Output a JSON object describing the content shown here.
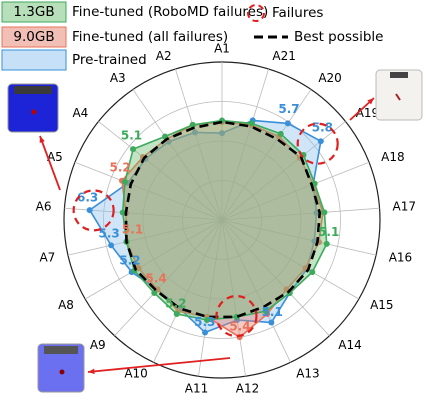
{
  "chart_data": {
    "type": "radar",
    "categories": [
      "A1",
      "A2",
      "A3",
      "A4",
      "A5",
      "A6",
      "A7",
      "A8",
      "A9",
      "A10",
      "A11",
      "A12",
      "A13",
      "A14",
      "A15",
      "A16",
      "A17",
      "A18",
      "A19",
      "A20",
      "A21"
    ],
    "rlim": [
      0,
      1
    ],
    "rticks": [
      0.25,
      0.5,
      0.75,
      1
    ],
    "grid": true,
    "series": [
      {
        "name": "Pre-trained",
        "color": "#3a8fd9",
        "fill": "#8ec2ef",
        "style": "solid",
        "values": [
          0.55,
          0.58,
          0.6,
          0.62,
          0.64,
          0.84,
          0.72,
          0.66,
          0.6,
          0.62,
          0.72,
          0.64,
          0.72,
          0.63,
          0.62,
          0.6,
          0.6,
          0.62,
          0.8,
          0.74,
          0.66
        ]
      },
      {
        "name": "Fine-tuned (all failures)",
        "badge": "9.0GB",
        "color": "#e8735a",
        "fill": "#e58070",
        "style": "solid",
        "values": [
          0.62,
          0.63,
          0.62,
          0.64,
          0.68,
          0.61,
          0.62,
          0.61,
          0.6,
          0.64,
          0.62,
          0.75,
          0.66,
          0.6,
          0.61,
          0.63,
          0.64,
          0.62,
          0.63,
          0.64,
          0.63
        ]
      },
      {
        "name": "Fine-tuned (RoboMD failures)",
        "badge": "1.3GB",
        "color": "#3daa5c",
        "fill": "#6fbf73",
        "style": "solid",
        "values": [
          0.63,
          0.63,
          0.64,
          0.72,
          0.66,
          0.63,
          0.62,
          0.64,
          0.63,
          0.66,
          0.64,
          0.62,
          0.64,
          0.63,
          0.66,
          0.68,
          0.65,
          0.63,
          0.66,
          0.66,
          0.64
        ]
      },
      {
        "name": "Best possible",
        "color": "#000000",
        "style": "dashed",
        "values": [
          0.62,
          0.61,
          0.62,
          0.63,
          0.62,
          0.61,
          0.62,
          0.63,
          0.61,
          0.62,
          0.62,
          0.62,
          0.61,
          0.62,
          0.63,
          0.62,
          0.62,
          0.61,
          0.64,
          0.62,
          0.62
        ]
      }
    ],
    "annotations": [
      {
        "text": "5.1",
        "category": 3,
        "series": 2
      },
      {
        "text": "5.2",
        "category": 4,
        "series": 1
      },
      {
        "text": "6.3",
        "category": 5,
        "series": 0
      },
      {
        "text": "5.3",
        "category": 6,
        "series": 0
      },
      {
        "text": "5.1",
        "category": 6,
        "series": 1
      },
      {
        "text": "5.2",
        "category": 7,
        "series": 0
      },
      {
        "text": "5.4",
        "category": 8,
        "series": 1
      },
      {
        "text": "5.2",
        "category": 9,
        "series": 2
      },
      {
        "text": "5.3",
        "category": 10,
        "series": 0
      },
      {
        "text": "5.4",
        "category": 11,
        "series": 1
      },
      {
        "text": "5.1",
        "category": 12,
        "series": 0
      },
      {
        "text": "5.1",
        "category": 15,
        "series": 2
      },
      {
        "text": "5.8",
        "category": 18,
        "series": 0
      },
      {
        "text": "5.7",
        "category": 19,
        "series": 0
      }
    ],
    "failures_label": "Failures",
    "failure_categories": [
      5,
      11,
      18
    ]
  }
}
